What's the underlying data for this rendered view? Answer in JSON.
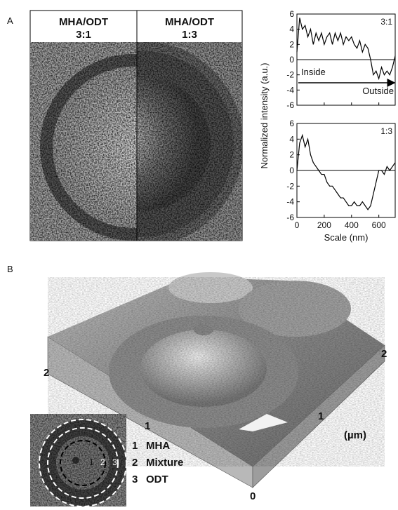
{
  "panel_a": {
    "label": "A",
    "image_labels": [
      {
        "title": "MHA/ODT",
        "ratio": "3:1"
      },
      {
        "title": "MHA/ODT",
        "ratio": "1:3"
      }
    ],
    "ylabel": "Normalized intensity (a.u.)"
  },
  "chart_data": [
    {
      "type": "line",
      "annotation": "3:1",
      "arrow_start_label": "Inside",
      "arrow_end_label": "Outside",
      "x": [
        0,
        20,
        40,
        60,
        80,
        100,
        120,
        140,
        160,
        180,
        200,
        220,
        240,
        260,
        280,
        300,
        320,
        340,
        360,
        380,
        400,
        420,
        440,
        460,
        480,
        500,
        520,
        540,
        560,
        580,
        600,
        620,
        640,
        660,
        680,
        700,
        720
      ],
      "series": [
        {
          "name": "3:1",
          "color": "#000000",
          "values": [
            1,
            5.5,
            4,
            4.5,
            3,
            4,
            2,
            3.5,
            2.5,
            3.5,
            2,
            3,
            3.5,
            2,
            3.5,
            2.5,
            3.5,
            2,
            3,
            2.5,
            3,
            2,
            1.5,
            2.5,
            1,
            2,
            1.5,
            0,
            -2,
            -1.5,
            -2.5,
            -1,
            -2,
            -1.5,
            -2,
            -1,
            0.5
          ]
        }
      ],
      "xlim": [
        0,
        720
      ],
      "xticks": [
        0,
        200,
        400,
        600
      ],
      "xtick_labels": false,
      "ylim": [
        -6,
        6
      ],
      "yticks": [
        -6,
        -4,
        -2,
        0,
        2,
        4,
        6
      ],
      "hline": 0
    },
    {
      "type": "line",
      "annotation": "1:3",
      "xlabel": "Scale (nm)",
      "x": [
        0,
        20,
        40,
        60,
        80,
        100,
        120,
        140,
        160,
        180,
        200,
        220,
        240,
        260,
        280,
        300,
        320,
        340,
        360,
        380,
        400,
        420,
        440,
        460,
        480,
        500,
        520,
        540,
        560,
        580,
        600,
        620,
        640,
        660,
        680,
        700,
        720
      ],
      "series": [
        {
          "name": "1:3",
          "color": "#000000",
          "values": [
            0,
            3.5,
            4.5,
            3,
            4,
            2,
            1,
            0.5,
            0,
            -0.5,
            -0.5,
            -1.5,
            -2,
            -2,
            -2.5,
            -3,
            -3.5,
            -3.5,
            -4,
            -4.5,
            -4.5,
            -4,
            -4.5,
            -4.5,
            -4,
            -4.5,
            -5,
            -4.5,
            -3,
            -1.5,
            0,
            0,
            -0.5,
            0.5,
            0,
            0.5,
            1
          ]
        }
      ],
      "xlim": [
        0,
        720
      ],
      "xticks": [
        0,
        200,
        400,
        600
      ],
      "xtick_labels": true,
      "ylim": [
        -6,
        6
      ],
      "yticks": [
        -6,
        -4,
        -2,
        0,
        2,
        4,
        6
      ],
      "hline": 0
    }
  ],
  "panel_b": {
    "label": "B",
    "axis_labels": [
      "2",
      "1",
      "0",
      "1",
      "2"
    ],
    "unit": "(µm)",
    "inset_numbers": [
      "1",
      "2",
      "3"
    ],
    "legend": [
      {
        "number": "1",
        "label": "MHA"
      },
      {
        "number": "2",
        "label": "Mixture"
      },
      {
        "number": "3",
        "label": "ODT"
      }
    ]
  }
}
